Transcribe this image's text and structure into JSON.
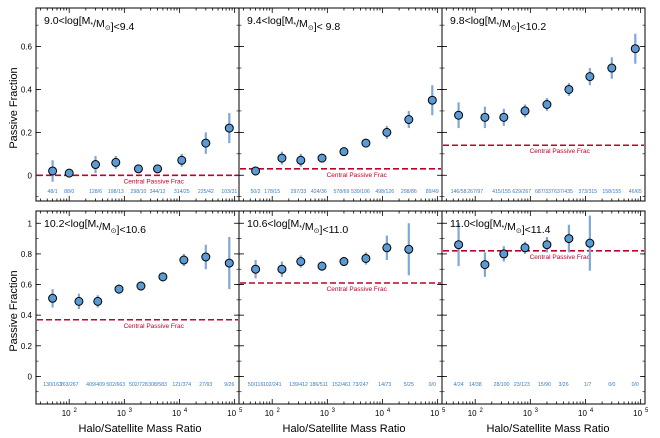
{
  "figure": {
    "ylabel": "Passive Fraction",
    "xlabel": "Halo/Satellite Mass Ratio",
    "reference_label": "Central Passive Frac"
  },
  "colors": {
    "marker_fill": "#5b9bd5",
    "marker_edge": "#000000",
    "errorbar": "#7fa8d8",
    "reference_line": "#c0002a",
    "count_text": "#3a7cc0",
    "axes": "#000000"
  },
  "chart_data": [
    {
      "type": "scatter",
      "title": "9.0<log[M*/M⊙]<9.4",
      "title_main": "9.0<log[M",
      "title_sub1": "*",
      "title_mid": "/M",
      "title_sub2": "⊙",
      "title_end": "]<9.4",
      "x": [
        50,
        100,
        300,
        700,
        1800,
        4000,
        11000,
        30000,
        80000
      ],
      "y": [
        0.02,
        0.01,
        0.05,
        0.06,
        0.03,
        0.03,
        0.07,
        0.15,
        0.22
      ],
      "yerr": [
        0.05,
        0.02,
        0.04,
        0.03,
        0.02,
        0.02,
        0.03,
        0.05,
        0.07
      ],
      "counts": [
        "48/1",
        "88/0",
        "128/6",
        "198/13",
        "298/10",
        "344/12",
        "314/25",
        "225/42",
        "103/31"
      ],
      "central_passive_frac": 0.0
    },
    {
      "type": "scatter",
      "title": "9.4<log[M*/M⊙]< 9.8",
      "title_main": "9.4<log[M",
      "title_sub1": "*",
      "title_mid": "/M",
      "title_sub2": "⊙",
      "title_end": "]< 9.8",
      "x": [
        50,
        150,
        330,
        800,
        2000,
        5000,
        12000,
        30000,
        80000
      ],
      "y": [
        0.02,
        0.08,
        0.07,
        0.08,
        0.11,
        0.15,
        0.2,
        0.26,
        0.35
      ],
      "yerr": [
        0.02,
        0.03,
        0.03,
        0.02,
        0.02,
        0.02,
        0.03,
        0.04,
        0.07
      ],
      "counts": [
        "50/2",
        "178/15",
        "297/33",
        "424/36",
        "578/69",
        "539/106",
        "498/126",
        "298/86",
        "89/49"
      ],
      "central_passive_frac": 0.03
    },
    {
      "type": "scatter",
      "title": "9.8<log[M*/M⊙]<10.2",
      "title_main": "9.8<log[M",
      "title_sub1": "*",
      "title_mid": "/M",
      "title_sub2": "⊙",
      "title_end": "]<10.2",
      "x": [
        50,
        150,
        330,
        800,
        2000,
        5000,
        12000,
        30000,
        80000
      ],
      "y": [
        0.28,
        0.27,
        0.27,
        0.3,
        0.33,
        0.4,
        0.46,
        0.5,
        0.59
      ],
      "yerr": [
        0.06,
        0.05,
        0.04,
        0.03,
        0.03,
        0.03,
        0.04,
        0.05,
        0.07
      ],
      "counts": [
        "146/58",
        "267/97",
        "415/155",
        "629/267",
        "687/337",
        "637/435",
        "373/315",
        "158/155",
        "46/65"
      ],
      "central_passive_frac": 0.14
    },
    {
      "type": "scatter",
      "title": "10.2<log[M*/M⊙]<10.6",
      "title_main": "10.2<log[M",
      "title_sub1": "*",
      "title_mid": "/M",
      "title_sub2": "⊙",
      "title_end": "]<10.6",
      "x": [
        50,
        150,
        330,
        800,
        2000,
        5000,
        12000,
        30000,
        80000
      ],
      "y": [
        0.51,
        0.49,
        0.49,
        0.57,
        0.59,
        0.65,
        0.76,
        0.78,
        0.74
      ],
      "yerr": [
        0.06,
        0.05,
        0.04,
        0.03,
        0.03,
        0.03,
        0.04,
        0.08,
        0.17
      ],
      "counts": [
        "130/163",
        "263/267",
        "409/409",
        "502/663",
        "502/728",
        "308/583",
        "121/374",
        "27/93",
        "9/26"
      ],
      "central_passive_frac": 0.37
    },
    {
      "type": "scatter",
      "title": "10.6<log[M*/M⊙]<11.0",
      "title_main": "10.6<log[M",
      "title_sub1": "*",
      "title_mid": "/M",
      "title_sub2": "⊙",
      "title_end": "]<11.0",
      "x": [
        50,
        150,
        330,
        800,
        2000,
        5000,
        12000,
        30000
      ],
      "y": [
        0.7,
        0.7,
        0.75,
        0.72,
        0.75,
        0.77,
        0.84,
        0.83
      ],
      "yerr": [
        0.06,
        0.05,
        0.04,
        0.03,
        0.03,
        0.04,
        0.08,
        0.17
      ],
      "counts": [
        "50/116",
        "102/241",
        "139/412",
        "186/511",
        "152/461",
        "73/247",
        "14/73",
        "5/25",
        "0/0"
      ],
      "central_passive_frac": 0.61
    },
    {
      "type": "scatter",
      "title": "11.0<log[M*/M⊙]<11.4",
      "title_main": "11.0<log[M",
      "title_sub1": "*",
      "title_mid": "/M",
      "title_sub2": "⊙",
      "title_end": "]<11.4",
      "x": [
        50,
        150,
        330,
        800,
        2000,
        5000,
        12000
      ],
      "y": [
        0.86,
        0.73,
        0.8,
        0.84,
        0.86,
        0.9,
        0.87
      ],
      "yerr": [
        0.14,
        0.08,
        0.05,
        0.04,
        0.05,
        0.09,
        0.18
      ],
      "counts": [
        "4/24",
        "14/38",
        "28/100",
        "23/123",
        "15/90",
        "3/26",
        "1/7",
        "0/0",
        "0/0"
      ],
      "central_passive_frac": 0.82
    }
  ],
  "axes": {
    "xlim": [
      25,
      120000
    ],
    "ylim": [
      -0.08,
      0.82
    ],
    "ylim_bottom_row": [
      -0.18,
      1.08
    ],
    "ylim_top_row": [
      -0.12,
      0.78
    ],
    "x_ticks": [
      100,
      1000,
      10000,
      100000
    ],
    "x_tick_labels": [
      "10",
      "10",
      "10",
      "10"
    ],
    "x_tick_exponents": [
      "2",
      "3",
      "4",
      "5"
    ],
    "y_ticks_top": [
      0,
      0.2,
      0.4,
      0.6
    ],
    "y_tick_labels_top": [
      "0",
      "0.2",
      "0.4",
      "0.6"
    ],
    "y_ticks_bottom": [
      0,
      0.2,
      0.4,
      0.6,
      0.8,
      1
    ],
    "y_tick_labels_bottom": [
      "0",
      "0.2",
      "0.4",
      "0.6",
      "0.8",
      "1"
    ]
  }
}
